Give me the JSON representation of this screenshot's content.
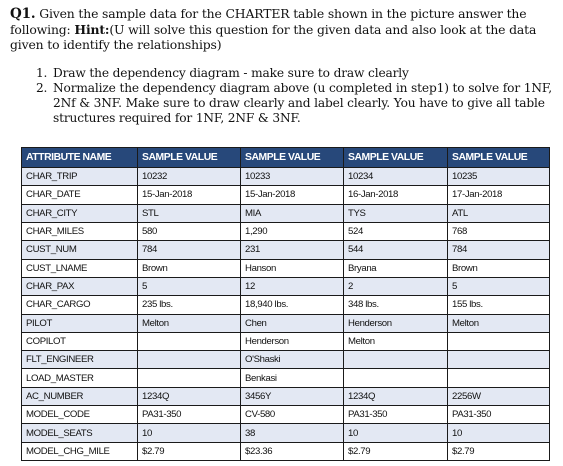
{
  "question": {
    "label": "Q1.",
    "text1": "Given the sample data for the CHARTER table shown in the picture answer the following:",
    "hint_label": "Hint:",
    "text2": "(U will solve this question for the given data and also look at the data given to identify the relationships)"
  },
  "tasks": [
    "Draw the dependency diagram - make sure to draw clearly",
    "Normalize the dependency diagram above (u completed in step1) to solve for 1NF, 2Nf & 3NF.  Make sure to draw clearly and label clearly.  You have to give all table structures required for 1NF, 2NF & 3NF."
  ],
  "table": {
    "headers": [
      "Attribute Name",
      "Sample Value",
      "Sample Value",
      "Sample Value",
      "Sample Value"
    ],
    "rows": [
      [
        "CHAR_TRIP",
        "10232",
        "10233",
        "10234",
        "10235"
      ],
      [
        "CHAR_DATE",
        "15-Jan-2018",
        "15-Jan-2018",
        "16-Jan-2018",
        "17-Jan-2018"
      ],
      [
        "CHAR_CITY",
        "STL",
        "MIA",
        "TYS",
        "ATL"
      ],
      [
        "CHAR_MILES",
        "580",
        "1,290",
        "524",
        "768"
      ],
      [
        "CUST_NUM",
        "784",
        "231",
        "544",
        "784"
      ],
      [
        "CUST_LNAME",
        "Brown",
        "Hanson",
        "Bryana",
        "Brown"
      ],
      [
        "CHAR_PAX",
        "5",
        "12",
        "2",
        "5"
      ],
      [
        "CHAR_CARGO",
        "235 lbs.",
        "18,940 lbs.",
        "348 lbs.",
        "155 lbs."
      ],
      [
        "PILOT",
        "Melton",
        "Chen",
        "Henderson",
        "Melton"
      ],
      [
        "COPILOT",
        "",
        "Henderson",
        "Melton",
        ""
      ],
      [
        "FLT_ENGINEER",
        "",
        "O'Shaski",
        "",
        ""
      ],
      [
        "LOAD_MASTER",
        "",
        "Benkasi",
        "",
        ""
      ],
      [
        "AC_NUMBER",
        "1234Q",
        "3456Y",
        "1234Q",
        "2256W"
      ],
      [
        "MODEL_CODE",
        "PA31-350",
        "CV-580",
        "PA31-350",
        "PA31-350"
      ],
      [
        "MODEL_SEATS",
        "10",
        "38",
        "10",
        "10"
      ],
      [
        "MODEL_CHG_MILE",
        "$2.79",
        "$23.36",
        "$2.79",
        "$2.79"
      ]
    ]
  },
  "colors": {
    "header_bg": "#27487a",
    "header_text": "#ffffff",
    "row_shade": "#e3e8f3"
  }
}
